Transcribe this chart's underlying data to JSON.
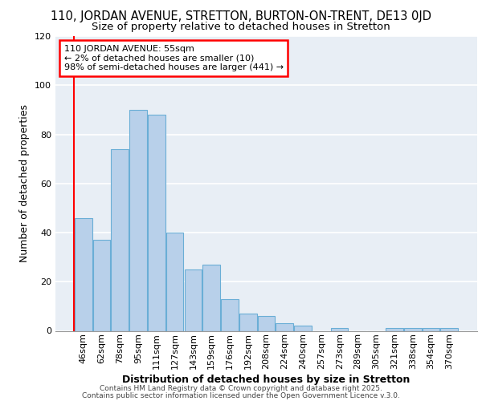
{
  "title_line1": "110, JORDAN AVENUE, STRETTON, BURTON-ON-TRENT, DE13 0JD",
  "title_line2": "Size of property relative to detached houses in Stretton",
  "xlabel": "Distribution of detached houses by size in Stretton",
  "ylabel": "Number of detached properties",
  "categories": [
    "46sqm",
    "62sqm",
    "78sqm",
    "95sqm",
    "111sqm",
    "127sqm",
    "143sqm",
    "159sqm",
    "176sqm",
    "192sqm",
    "208sqm",
    "224sqm",
    "240sqm",
    "257sqm",
    "273sqm",
    "289sqm",
    "305sqm",
    "321sqm",
    "338sqm",
    "354sqm",
    "370sqm"
  ],
  "values": [
    46,
    37,
    74,
    90,
    88,
    40,
    25,
    27,
    13,
    7,
    6,
    3,
    2,
    0,
    1,
    0,
    0,
    1,
    1,
    1,
    1
  ],
  "bar_color": "#b8d0ea",
  "bar_edgecolor": "#6aaed6",
  "annotation_text": "110 JORDAN AVENUE: 55sqm\n← 2% of detached houses are smaller (10)\n98% of semi-detached houses are larger (441) →",
  "annotation_box_edgecolor": "red",
  "annotation_box_facecolor": "white",
  "ylim": [
    0,
    120
  ],
  "yticks": [
    0,
    20,
    40,
    60,
    80,
    100,
    120
  ],
  "footer1": "Contains HM Land Registry data © Crown copyright and database right 2025.",
  "footer2": "Contains public sector information licensed under the Open Government Licence v.3.0.",
  "fig_bg_color": "#ffffff",
  "plot_bg_color": "#e8eef5",
  "grid_color": "#ffffff",
  "title_fontsize": 10.5,
  "subtitle_fontsize": 9.5,
  "axis_label_fontsize": 9,
  "tick_fontsize": 8,
  "annotation_fontsize": 8,
  "footer_fontsize": 6.5,
  "red_line_x": -0.5
}
